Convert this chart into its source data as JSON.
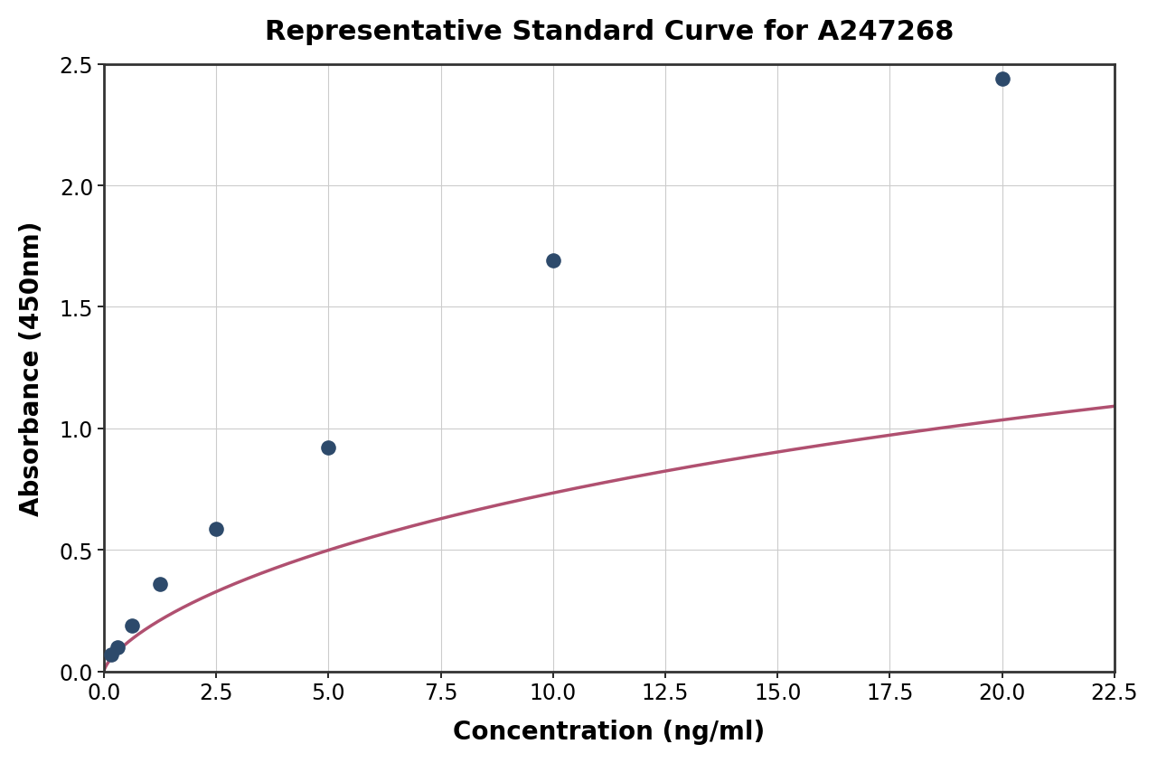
{
  "title": "Representative Standard Curve for A247268",
  "xlabel": "Concentration (ng/ml)",
  "ylabel": "Absorbance (450nm)",
  "scatter_x": [
    0.156,
    0.313,
    0.625,
    1.25,
    2.5,
    5.0,
    10.0,
    20.0
  ],
  "scatter_y": [
    0.068,
    0.1,
    0.19,
    0.36,
    0.585,
    0.92,
    1.69,
    2.44
  ],
  "scatter_color": "#2d4a6b",
  "curve_color": "#b05070",
  "xlim": [
    0,
    22.5
  ],
  "ylim": [
    0,
    2.5
  ],
  "xticks": [
    0.0,
    2.5,
    5.0,
    7.5,
    10.0,
    12.5,
    15.0,
    17.5,
    20.0,
    22.5
  ],
  "yticks": [
    0.0,
    0.5,
    1.0,
    1.5,
    2.0,
    2.5
  ],
  "title_fontsize": 22,
  "label_fontsize": 20,
  "tick_fontsize": 17,
  "scatter_size": 120,
  "background_color": "#ffffff",
  "grid_color": "#cccccc",
  "spine_color": "#333333",
  "spine_linewidth": 2.0,
  "curve_linewidth": 2.5,
  "figsize": [
    12.8,
    8.45
  ],
  "dpi": 100
}
